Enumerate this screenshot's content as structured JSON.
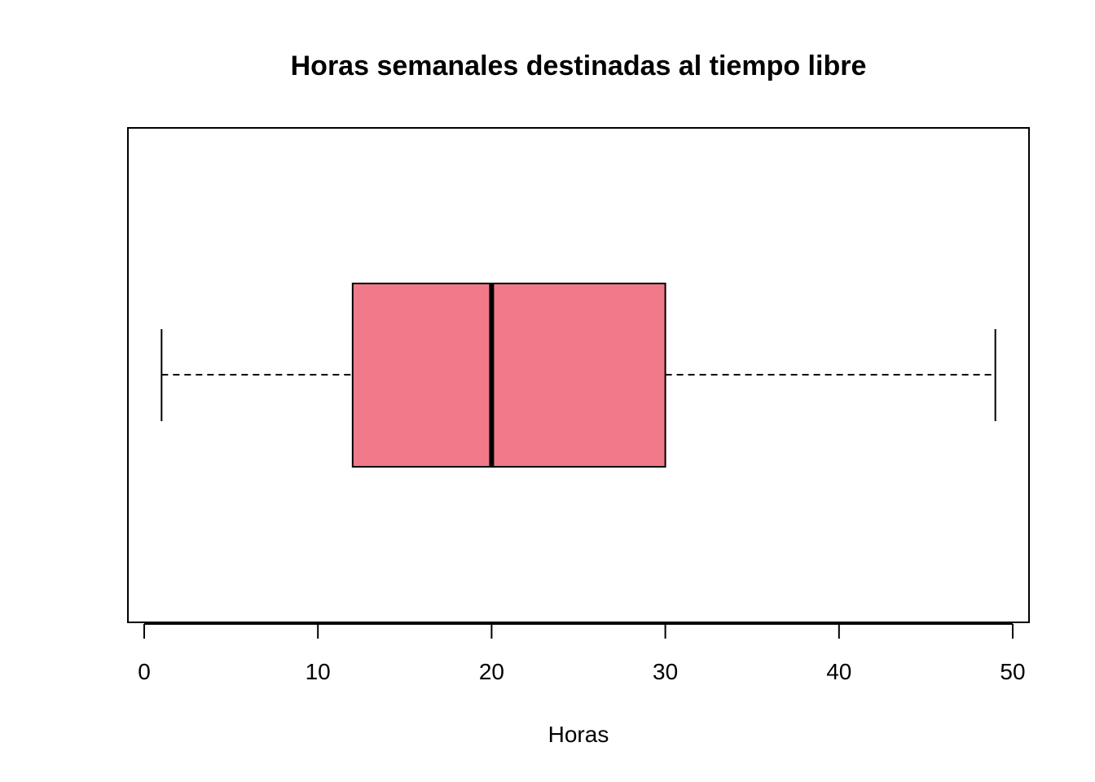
{
  "chart_data": {
    "type": "boxplot",
    "orientation": "horizontal",
    "title": "Horas semanales destinadas al tiempo libre",
    "xlabel": "Horas",
    "ylabel": "",
    "xlim": [
      0,
      50
    ],
    "ticks": [
      {
        "value": 0,
        "label": "0"
      },
      {
        "value": 10,
        "label": "10"
      },
      {
        "value": 20,
        "label": "20"
      },
      {
        "value": 30,
        "label": "30"
      },
      {
        "value": 40,
        "label": "40"
      },
      {
        "value": 50,
        "label": "50"
      }
    ],
    "box": {
      "min": 1,
      "q1": 12,
      "median": 20,
      "q3": 30,
      "max": 49,
      "fill": "#F07A8A"
    },
    "grid": false
  }
}
